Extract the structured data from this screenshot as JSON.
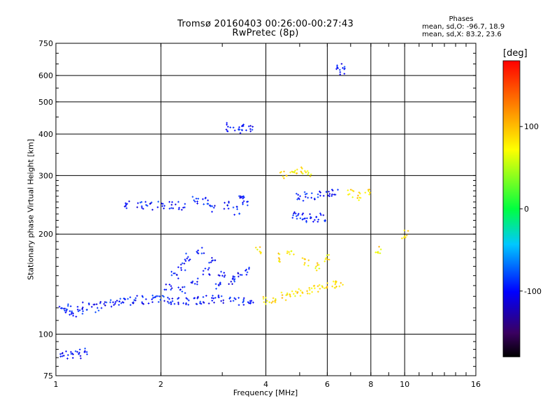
{
  "chart_data": {
    "type": "scatter",
    "title": "Tromsø 20160403 00:26:00-00:27:43",
    "subtitle": "RwPretec (8p)",
    "xlabel": "Frequency [MHz]",
    "ylabel": "Stationary phase Virtual Height [km]",
    "x_scale": "log",
    "y_scale": "log",
    "xlim": [
      1,
      16
    ],
    "ylim": [
      75,
      750
    ],
    "x_ticks": [
      1,
      2,
      4,
      6,
      8,
      10,
      16
    ],
    "x_tick_labels": [
      "1",
      "2",
      "4",
      "6",
      "8",
      "10",
      "16"
    ],
    "y_ticks": [
      75,
      100,
      200,
      300,
      400,
      500,
      600,
      750
    ],
    "y_tick_labels": [
      "75",
      "100",
      "200",
      "300",
      "400",
      "500",
      "600",
      "750"
    ],
    "grid": true,
    "colorbar": {
      "label": "[deg]",
      "range": [
        -180,
        180
      ],
      "ticks": [
        -100,
        0,
        100
      ],
      "tick_labels": [
        "-100",
        "0",
        "100"
      ]
    },
    "stats": {
      "header": "Phases",
      "line1": "mean, sd,O: -96.7, 18.9",
      "line2": "mean, sd,X:  83.2, 23.6"
    },
    "series": [
      {
        "mode": "O",
        "phase_mean": -96.7,
        "phase_sd": 18.9,
        "points": [
          [
            1.05,
            118
          ],
          [
            1.08,
            120
          ],
          [
            1.12,
            116
          ],
          [
            1.17,
            118
          ],
          [
            1.22,
            121
          ],
          [
            1.3,
            120
          ],
          [
            1.37,
            122
          ],
          [
            1.45,
            123
          ],
          [
            1.52,
            125
          ],
          [
            1.6,
            126
          ],
          [
            1.7,
            127
          ],
          [
            1.8,
            127
          ],
          [
            1.9,
            128
          ],
          [
            2.0,
            127
          ],
          [
            2.1,
            126
          ],
          [
            2.2,
            127
          ],
          [
            2.35,
            126
          ],
          [
            2.5,
            126
          ],
          [
            2.65,
            127
          ],
          [
            2.8,
            127
          ],
          [
            3.0,
            127
          ],
          [
            3.2,
            126
          ],
          [
            3.4,
            126
          ],
          [
            3.6,
            124
          ],
          [
            1.05,
            88
          ],
          [
            1.1,
            86
          ],
          [
            1.15,
            87
          ],
          [
            1.2,
            88
          ],
          [
            1.6,
            246
          ],
          [
            1.75,
            244
          ],
          [
            1.85,
            243
          ],
          [
            2.0,
            244
          ],
          [
            2.15,
            245
          ],
          [
            2.3,
            244
          ],
          [
            2.5,
            252
          ],
          [
            2.2,
            150
          ],
          [
            2.3,
            160
          ],
          [
            2.4,
            170
          ],
          [
            2.6,
            180
          ],
          [
            2.8,
            165
          ],
          [
            3.0,
            150
          ],
          [
            3.2,
            145
          ],
          [
            3.5,
            155
          ],
          [
            2.1,
            140
          ],
          [
            2.3,
            135
          ],
          [
            2.5,
            145
          ],
          [
            2.7,
            155
          ],
          [
            2.9,
            140
          ],
          [
            3.3,
            150
          ],
          [
            2.7,
            250
          ],
          [
            2.8,
            240
          ],
          [
            3.1,
            245
          ],
          [
            3.3,
            235
          ],
          [
            3.4,
            260
          ],
          [
            3.5,
            250
          ],
          [
            3.1,
            420
          ],
          [
            3.3,
            410
          ],
          [
            3.4,
            415
          ],
          [
            3.6,
            420
          ],
          [
            4.8,
            228
          ],
          [
            5.0,
            226
          ],
          [
            5.3,
            224
          ],
          [
            5.5,
            222
          ],
          [
            5.8,
            225
          ],
          [
            5.0,
            258
          ],
          [
            5.3,
            260
          ],
          [
            5.6,
            262
          ],
          [
            6.0,
            265
          ],
          [
            6.3,
            268
          ],
          [
            6.5,
            640
          ],
          [
            6.6,
            620
          ]
        ]
      },
      {
        "mode": "X",
        "phase_mean": 83.2,
        "phase_sd": 23.6,
        "points": [
          [
            4.0,
            126
          ],
          [
            4.2,
            128
          ],
          [
            4.5,
            130
          ],
          [
            4.8,
            132
          ],
          [
            5.0,
            133
          ],
          [
            5.3,
            135
          ],
          [
            5.6,
            137
          ],
          [
            5.9,
            139
          ],
          [
            6.2,
            141
          ],
          [
            6.5,
            143
          ],
          [
            3.8,
            180
          ],
          [
            4.3,
            170
          ],
          [
            4.7,
            175
          ],
          [
            5.2,
            165
          ],
          [
            5.6,
            160
          ],
          [
            6.0,
            170
          ],
          [
            4.5,
            300
          ],
          [
            4.8,
            305
          ],
          [
            5.0,
            310
          ],
          [
            5.3,
            302
          ],
          [
            7.0,
            265
          ],
          [
            7.4,
            260
          ],
          [
            7.8,
            270
          ],
          [
            8.4,
            180
          ],
          [
            10.0,
            200
          ]
        ]
      }
    ]
  }
}
